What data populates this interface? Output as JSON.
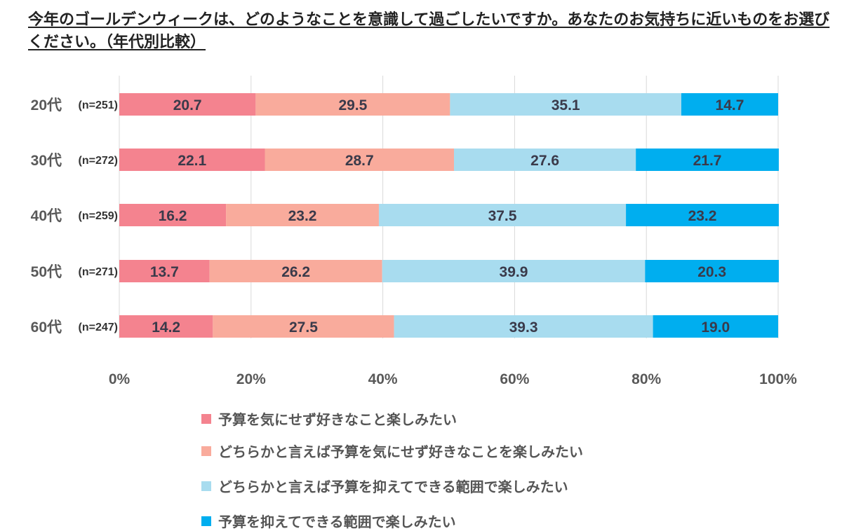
{
  "chart_data": {
    "type": "bar",
    "orientation": "horizontal",
    "stacked": true,
    "title": "今年のゴールデンウィークは、どのようなことを意識して過ごしたいですか。あなたのお気持ちに近いものをお選びください。（年代別比較）",
    "categories": [
      "20代",
      "30代",
      "40代",
      "50代",
      "60代"
    ],
    "category_notes": [
      "(n=251)",
      "(n=272)",
      "(n=259)",
      "(n=271)",
      "(n=247)"
    ],
    "series": [
      {
        "name": "予算を気にせず好きなこと楽しみたい",
        "color": "#F4838F",
        "values": [
          20.7,
          22.1,
          16.2,
          13.7,
          14.2
        ]
      },
      {
        "name": "どちらかと言えば予算を気にせず好きなことを楽しみたい",
        "color": "#F9AB9C",
        "values": [
          29.5,
          28.7,
          23.2,
          26.2,
          27.5
        ]
      },
      {
        "name": "どちらかと言えば予算を抑えてできる範囲で楽しみたい",
        "color": "#A8DCEF",
        "values": [
          35.1,
          27.6,
          37.5,
          39.9,
          39.3
        ]
      },
      {
        "name": "予算を抑えてできる範囲で楽しみたい",
        "color": "#00AEEF",
        "values": [
          14.7,
          21.7,
          23.2,
          20.3,
          19.0
        ]
      }
    ],
    "xlim": [
      0,
      100
    ],
    "xticks": [
      "0%",
      "20%",
      "40%",
      "60%",
      "80%",
      "100%"
    ],
    "grid": true,
    "legend_position": "bottom"
  }
}
